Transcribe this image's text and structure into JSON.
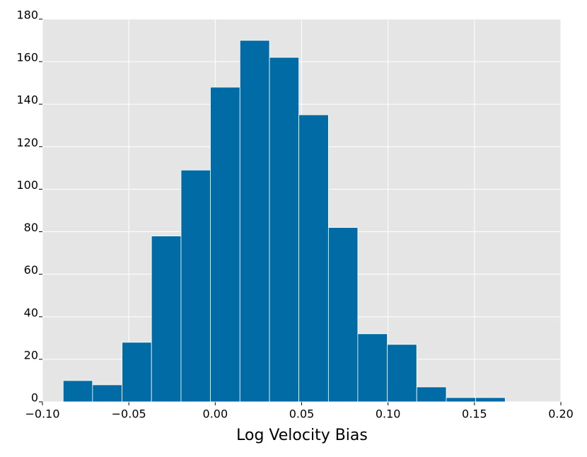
{
  "chart_data": {
    "type": "histogram",
    "xlabel": "Log Velocity Bias",
    "bins": [
      -0.088,
      -0.071,
      -0.0539,
      -0.0369,
      -0.0198,
      -0.0028,
      0.0143,
      0.0314,
      0.0484,
      0.0655,
      0.0825,
      0.0996,
      0.1166,
      0.1337,
      0.1507,
      0.1678
    ],
    "counts": [
      10,
      8,
      28,
      78,
      109,
      148,
      170,
      162,
      135,
      82,
      32,
      27,
      7,
      2,
      2
    ],
    "color": "#006ba4",
    "xlim": [
      -0.1,
      0.2
    ],
    "xticks": [
      {
        "value": -0.1,
        "label": "−0.10"
      },
      {
        "value": -0.05,
        "label": "−0.05"
      },
      {
        "value": 0,
        "label": "0.00"
      },
      {
        "value": 0.05,
        "label": "0.05"
      },
      {
        "value": 0.1,
        "label": "0.10"
      },
      {
        "value": 0.15,
        "label": "0.15"
      },
      {
        "value": 0.2,
        "label": "0.20"
      }
    ],
    "ylim": [
      0,
      180
    ],
    "yticks": [
      0,
      20,
      40,
      60,
      80,
      100,
      120,
      140,
      160,
      180
    ],
    "grid": true
  }
}
